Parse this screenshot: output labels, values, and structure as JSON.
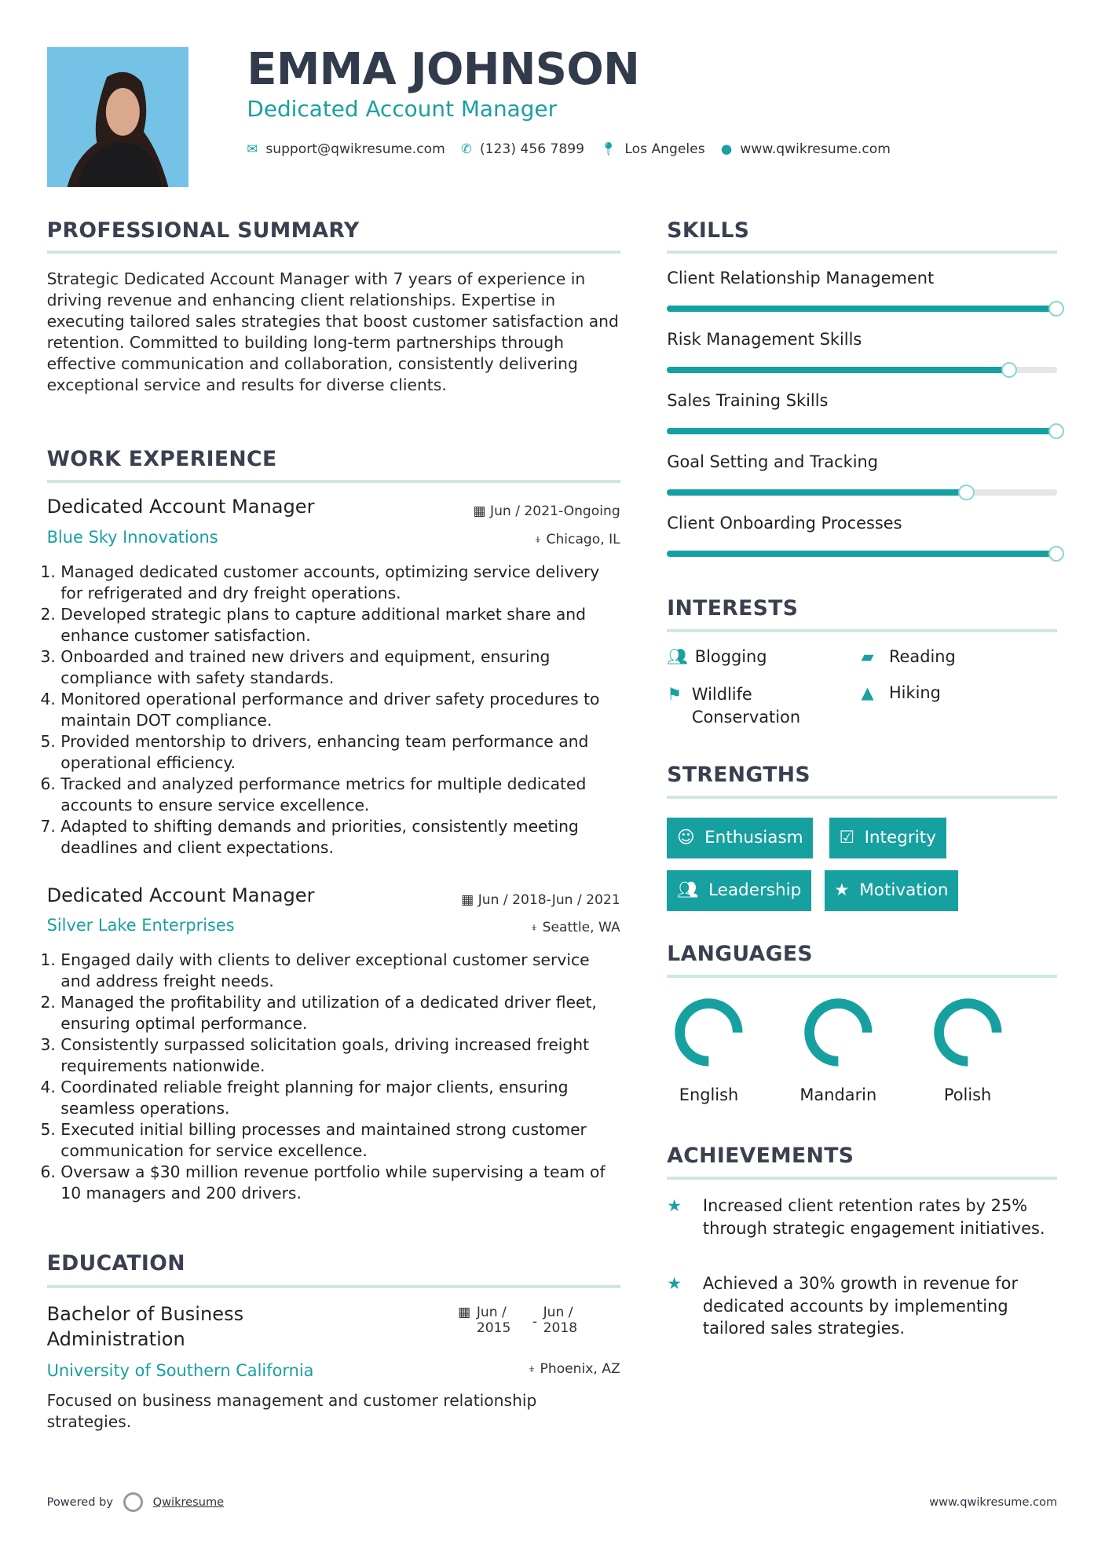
{
  "header": {
    "name": "EMMA JOHNSON",
    "title": "Dedicated Account Manager",
    "email": "support@qwikresume.com",
    "phone": "(123) 456 7899",
    "location": "Los Angeles",
    "website": "www.qwikresume.com"
  },
  "summary": {
    "heading": "PROFESSIONAL SUMMARY",
    "text": "Strategic Dedicated Account Manager with 7 years of experience in driving revenue and enhancing client relationships. Expertise in executing tailored sales strategies that boost customer satisfaction and retention. Committed to building long-term partnerships through effective communication and collaboration, consistently delivering exceptional service and results for diverse clients."
  },
  "work": {
    "heading": "WORK EXPERIENCE",
    "jobs": [
      {
        "title": "Dedicated Account Manager",
        "date": "Jun / 2021-Ongoing",
        "company": "Blue Sky Innovations",
        "location": "Chicago, IL",
        "items": [
          "Managed dedicated customer accounts, optimizing service delivery for refrigerated and dry freight operations.",
          "Developed strategic plans to capture additional market share and enhance customer satisfaction.",
          "Onboarded and trained new drivers and equipment, ensuring compliance with safety standards.",
          "Monitored operational performance and driver safety procedures to maintain DOT compliance.",
          "Provided mentorship to drivers, enhancing team performance and operational efficiency.",
          "Tracked and analyzed performance metrics for multiple dedicated accounts to ensure service excellence.",
          "Adapted to shifting demands and priorities, consistently meeting deadlines and client expectations."
        ]
      },
      {
        "title": "Dedicated Account Manager",
        "date": "Jun / 2018-Jun / 2021",
        "company": "Silver Lake Enterprises",
        "location": "Seattle, WA",
        "items": [
          "Engaged daily with clients to deliver exceptional customer service and address freight needs.",
          "Managed the profitability and utilization of a dedicated driver fleet, ensuring optimal performance.",
          "Consistently surpassed solicitation goals, driving increased freight requirements nationwide.",
          "Coordinated reliable freight planning for major clients, ensuring seamless operations.",
          "Executed initial billing processes and maintained strong customer communication for service excellence.",
          "Oversaw a $30 million revenue portfolio while supervising a team of 10 managers and 200 drivers."
        ]
      }
    ]
  },
  "education": {
    "heading": "EDUCATION",
    "degree": "Bachelor of Business Administration",
    "start": "Jun / 2015",
    "sep": "-",
    "end": "Jun / 2018",
    "school": "University of Southern California",
    "location": "Phoenix, AZ",
    "text": "Focused on business management and customer relationship strategies."
  },
  "skills": {
    "heading": "SKILLS",
    "items": [
      {
        "label": "Client Relationship Management",
        "level": 100
      },
      {
        "label": "Risk Management Skills",
        "level": 88
      },
      {
        "label": "Sales Training Skills",
        "level": 100
      },
      {
        "label": "Goal Setting and Tracking",
        "level": 77
      },
      {
        "label": "Client Onboarding Processes",
        "level": 100
      }
    ]
  },
  "interests": {
    "heading": "INTERESTS",
    "items": [
      {
        "label": "Blogging",
        "icon": "users-icon"
      },
      {
        "label": "Reading",
        "icon": "book-icon"
      },
      {
        "label": "Wildlife Conservation",
        "icon": "flag-icon"
      },
      {
        "label": "Hiking",
        "icon": "tree-icon"
      }
    ]
  },
  "strengths": {
    "heading": "STRENGTHS",
    "items": [
      {
        "label": "Enthusiasm",
        "icon": "smile-icon"
      },
      {
        "label": "Integrity",
        "icon": "check-square-icon"
      },
      {
        "label": "Leadership",
        "icon": "users-icon"
      },
      {
        "label": "Motivation",
        "icon": "star-icon"
      }
    ]
  },
  "languages": {
    "heading": "LANGUAGES",
    "items": [
      {
        "label": "English",
        "level": 75
      },
      {
        "label": "Mandarin",
        "level": 75
      },
      {
        "label": "Polish",
        "level": 75
      }
    ]
  },
  "achievements": {
    "heading": "ACHIEVEMENTS",
    "items": [
      "Increased client retention rates by 25% through strategic engagement initiatives.",
      "Achieved a 30% growth in revenue for dedicated accounts by implementing tailored sales strategies."
    ]
  },
  "footer": {
    "powered": "Powered by",
    "brand": "Qwikresume",
    "site": "www.qwikresume.com"
  },
  "colors": {
    "accent": "#1aa0a0",
    "heading": "#3a4050",
    "rule": "#cde8e3"
  }
}
